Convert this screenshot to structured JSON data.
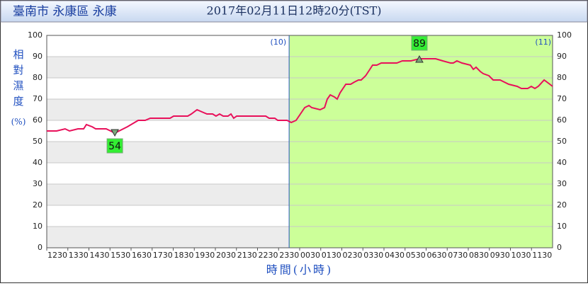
{
  "header": {
    "station": "臺南市 永康區 永康",
    "time": "2017年02月11日12時20分(TST)"
  },
  "chart_data": {
    "type": "line",
    "ylabel": "相對濕度(%)",
    "xlabel": "時間(小時)",
    "xlim": [
      12.5,
      36.5
    ],
    "xticks": [
      {
        "value": 12.5,
        "label": "1230"
      },
      {
        "value": 13.5,
        "label": "1330"
      },
      {
        "value": 14.5,
        "label": "1430"
      },
      {
        "value": 15.5,
        "label": "1530"
      },
      {
        "value": 16.5,
        "label": "1630"
      },
      {
        "value": 17.5,
        "label": "1730"
      },
      {
        "value": 18.5,
        "label": "1830"
      },
      {
        "value": 19.5,
        "label": "1930"
      },
      {
        "value": 20.5,
        "label": "2030"
      },
      {
        "value": 21.5,
        "label": "2130"
      },
      {
        "value": 22.5,
        "label": "2230"
      },
      {
        "value": 23.5,
        "label": "2330"
      },
      {
        "value": 24.5,
        "label": "0030"
      },
      {
        "value": 25.5,
        "label": "0130"
      },
      {
        "value": 26.5,
        "label": "0230"
      },
      {
        "value": 27.5,
        "label": "0330"
      },
      {
        "value": 28.5,
        "label": "0430"
      },
      {
        "value": 29.5,
        "label": "0530"
      },
      {
        "value": 30.5,
        "label": "0630"
      },
      {
        "value": 31.5,
        "label": "0730"
      },
      {
        "value": 32.5,
        "label": "0830"
      },
      {
        "value": 33.5,
        "label": "0930"
      },
      {
        "value": 34.5,
        "label": "1030"
      },
      {
        "value": 35.5,
        "label": "1130"
      }
    ],
    "ylim": [
      0,
      100
    ],
    "yticks": [
      0,
      10,
      20,
      30,
      40,
      50,
      60,
      70,
      80,
      90,
      100
    ],
    "day_divider": {
      "x": 24,
      "before": "(10)",
      "after": "(11)"
    },
    "series": [
      {
        "name": "相對濕度",
        "color": "#e8105a",
        "x": [
          12.5,
          12.97,
          13.37,
          13.58,
          13.98,
          14.25,
          14.38,
          14.65,
          14.82,
          15.32,
          15.53,
          15.73,
          15.93,
          16.33,
          16.84,
          17.17,
          17.41,
          18.35,
          18.52,
          19.19,
          19.36,
          19.63,
          19.86,
          20.1,
          20.37,
          20.53,
          20.7,
          20.87,
          21.1,
          21.24,
          21.37,
          21.51,
          22.89,
          23.05,
          23.32,
          23.46,
          23.9,
          24.1,
          24.33,
          24.74,
          24.94,
          25.07,
          25.47,
          25.68,
          25.81,
          25.95,
          26.15,
          26.28,
          26.42,
          26.69,
          26.92,
          27.09,
          27.29,
          27.42,
          27.63,
          27.83,
          27.96,
          28.16,
          28.37,
          29.11,
          29.37,
          29.78,
          30.18,
          30.95,
          31.29,
          31.66,
          31.79,
          31.96,
          32.2,
          32.6,
          32.74,
          32.87,
          33.07,
          33.21,
          33.48,
          33.68,
          34.01,
          34.42,
          34.82,
          35.02,
          35.32,
          35.49,
          35.66,
          35.82,
          36.1,
          36.37,
          36.5
        ],
        "values": [
          55,
          55,
          56,
          55,
          56,
          56,
          58,
          57,
          56,
          56,
          55,
          54,
          55,
          57,
          60,
          60,
          61,
          61,
          62,
          62,
          63,
          65,
          64,
          63,
          63,
          62,
          63,
          62,
          62,
          63,
          61,
          62,
          62,
          61,
          61,
          60,
          60,
          59,
          60,
          66,
          67,
          66,
          65,
          66,
          70,
          72,
          71,
          70,
          73,
          77,
          77,
          78,
          79,
          79,
          81,
          84,
          86,
          86,
          87,
          87,
          88,
          88,
          89,
          89,
          88,
          87,
          87,
          88,
          87,
          86,
          84,
          85,
          83,
          82,
          81,
          79,
          79,
          77,
          76,
          75,
          75,
          76,
          75,
          76,
          79,
          77,
          76
        ]
      }
    ],
    "min": {
      "x": 15.73,
      "value": 54
    },
    "max": {
      "x": 30.18,
      "value": 89
    }
  }
}
